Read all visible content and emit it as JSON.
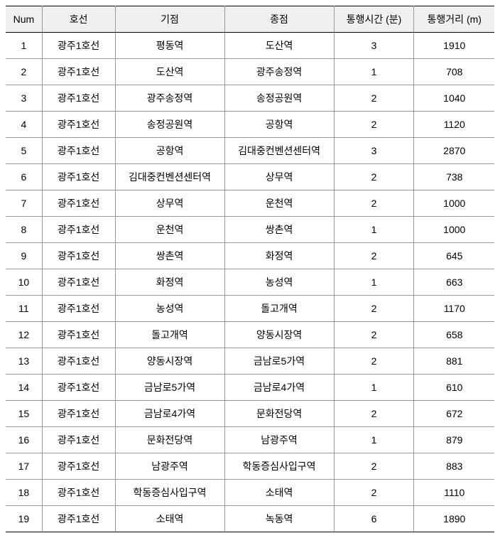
{
  "table": {
    "headers": {
      "num": "Num",
      "line": "호선",
      "start": "기점",
      "end": "종점",
      "time": "통행시간 (분)",
      "distance": "통행거리 (m)"
    },
    "rows": [
      {
        "num": "1",
        "line": "광주1호선",
        "start": "평동역",
        "end": "도산역",
        "time": "3",
        "distance": "1910"
      },
      {
        "num": "2",
        "line": "광주1호선",
        "start": "도산역",
        "end": "광주송정역",
        "time": "1",
        "distance": "708"
      },
      {
        "num": "3",
        "line": "광주1호선",
        "start": "광주송정역",
        "end": "송정공원역",
        "time": "2",
        "distance": "1040"
      },
      {
        "num": "4",
        "line": "광주1호선",
        "start": "송정공원역",
        "end": "공항역",
        "time": "2",
        "distance": "1120"
      },
      {
        "num": "5",
        "line": "광주1호선",
        "start": "공항역",
        "end": "김대중컨벤션센터역",
        "time": "3",
        "distance": "2870"
      },
      {
        "num": "6",
        "line": "광주1호선",
        "start": "김대중컨벤션센터역",
        "end": "상무역",
        "time": "2",
        "distance": "738"
      },
      {
        "num": "7",
        "line": "광주1호선",
        "start": "상무역",
        "end": "운천역",
        "time": "2",
        "distance": "1000"
      },
      {
        "num": "8",
        "line": "광주1호선",
        "start": "운천역",
        "end": "쌍촌역",
        "time": "1",
        "distance": "1000"
      },
      {
        "num": "9",
        "line": "광주1호선",
        "start": "쌍촌역",
        "end": "화정역",
        "time": "2",
        "distance": "645"
      },
      {
        "num": "10",
        "line": "광주1호선",
        "start": "화정역",
        "end": "농성역",
        "time": "1",
        "distance": "663"
      },
      {
        "num": "11",
        "line": "광주1호선",
        "start": "농성역",
        "end": "돌고개역",
        "time": "2",
        "distance": "1170"
      },
      {
        "num": "12",
        "line": "광주1호선",
        "start": "돌고개역",
        "end": "양동시장역",
        "time": "2",
        "distance": "658"
      },
      {
        "num": "13",
        "line": "광주1호선",
        "start": "양동시장역",
        "end": "금남로5가역",
        "time": "2",
        "distance": "881"
      },
      {
        "num": "14",
        "line": "광주1호선",
        "start": "금남로5가역",
        "end": "금남로4가역",
        "time": "1",
        "distance": "610"
      },
      {
        "num": "15",
        "line": "광주1호선",
        "start": "금남로4가역",
        "end": "문화전당역",
        "time": "2",
        "distance": "672"
      },
      {
        "num": "16",
        "line": "광주1호선",
        "start": "문화전당역",
        "end": "남광주역",
        "time": "1",
        "distance": "879"
      },
      {
        "num": "17",
        "line": "광주1호선",
        "start": "남광주역",
        "end": "학동증심사입구역",
        "time": "2",
        "distance": "883"
      },
      {
        "num": "18",
        "line": "광주1호선",
        "start": "학동증심사입구역",
        "end": "소태역",
        "time": "2",
        "distance": "1110"
      },
      {
        "num": "19",
        "line": "광주1호선",
        "start": "소태역",
        "end": "녹동역",
        "time": "6",
        "distance": "1890"
      }
    ]
  },
  "style": {
    "background_color": "#ffffff",
    "header_bg": "#f0f0f0",
    "border_color_strong": "#000000",
    "border_color_light": "#999999",
    "text_color": "#000000",
    "font_size": 14,
    "column_widths": {
      "num": 50,
      "line": 100,
      "start": 150,
      "end": 150,
      "time": 110,
      "distance": 110
    }
  }
}
